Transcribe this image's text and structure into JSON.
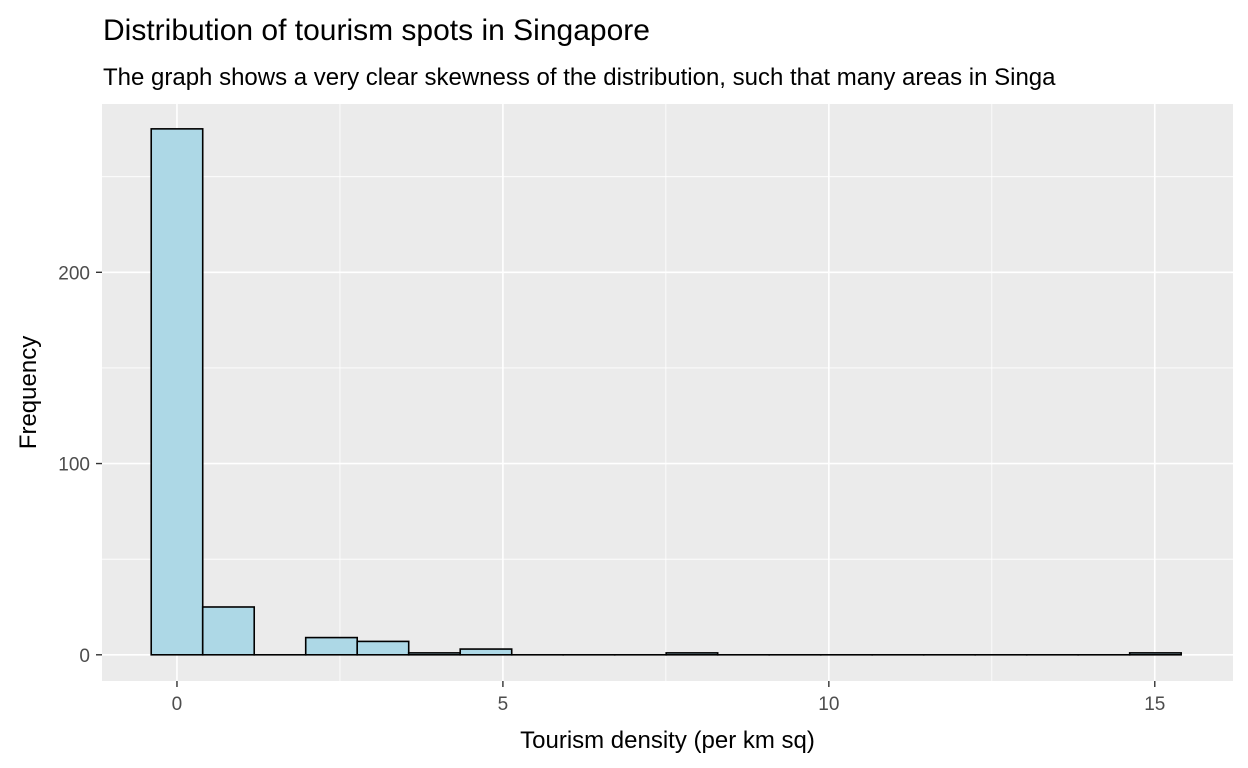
{
  "chart_data": {
    "type": "bar",
    "title": "Distribution of tourism spots in Singapore",
    "subtitle": "The graph shows a very clear skewness of the distribution, such that many areas in Singa",
    "xlabel": "Tourism density (per km sq)",
    "ylabel": "Frequency",
    "xlim": [
      -1.15,
      16.2
    ],
    "ylim": [
      -13.7,
      288
    ],
    "x_ticks": [
      0,
      5,
      10,
      15
    ],
    "y_ticks": [
      0,
      100,
      200
    ],
    "x_tick_labels": [
      "0",
      "5",
      "10",
      "15"
    ],
    "y_tick_labels": [
      "0",
      "100",
      "200"
    ],
    "grid": true,
    "bin_width": 0.79,
    "bin_start": -0.4,
    "bars": [
      {
        "x": 0.0,
        "count": 275
      },
      {
        "x": 0.79,
        "count": 25
      },
      {
        "x": 1.58,
        "count": 0
      },
      {
        "x": 2.37,
        "count": 9
      },
      {
        "x": 3.16,
        "count": 7
      },
      {
        "x": 3.95,
        "count": 1
      },
      {
        "x": 4.74,
        "count": 3
      },
      {
        "x": 5.53,
        "count": 0
      },
      {
        "x": 6.32,
        "count": 0
      },
      {
        "x": 7.11,
        "count": 0
      },
      {
        "x": 7.9,
        "count": 1
      },
      {
        "x": 8.69,
        "count": 0
      },
      {
        "x": 9.48,
        "count": 0
      },
      {
        "x": 10.27,
        "count": 0
      },
      {
        "x": 11.06,
        "count": 0
      },
      {
        "x": 11.85,
        "count": 0
      },
      {
        "x": 12.64,
        "count": 0
      },
      {
        "x": 13.43,
        "count": 0
      },
      {
        "x": 14.22,
        "count": 0
      },
      {
        "x": 15.01,
        "count": 1
      }
    ],
    "colors": {
      "bar_fill": "#add8e6",
      "bar_outline": "#000000",
      "panel": "#ebebeb",
      "grid": "#ffffff",
      "tick_text": "#4d4d4d"
    }
  }
}
